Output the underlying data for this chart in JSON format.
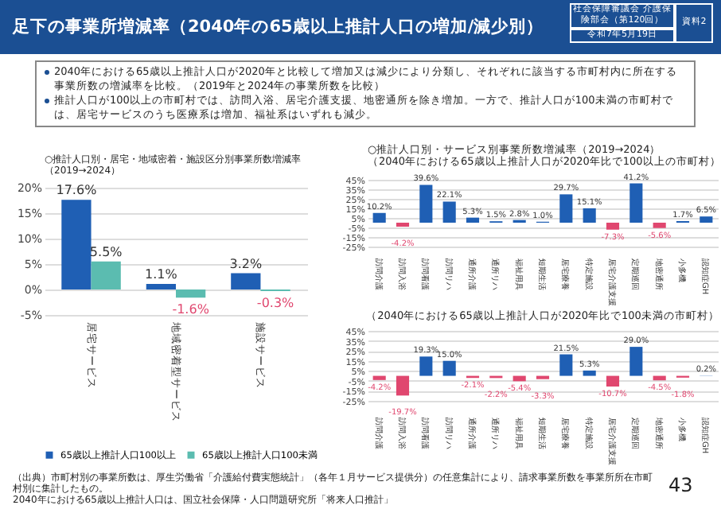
{
  "chart_data": [
    {
      "type": "other",
      "title": "足下の事業所増減率（2040年の65歳以上推計人口の増加/減少別）",
      "annotations": [
        "社会保障審議会 介護保険部会（第120回）",
        "令和7年5月19日",
        "資料2",
        "2040年における65歳以上推計人口が2020年と比較して増加又は減少により分類し、それぞれに該当する市町村内に所在する事業所数の増減率を比較。（2019年と2024年の事業所数を比較）",
        "推計人口が100以上の市町村では、訪問入浴、居宅介護支援、地密通所を除き増加。一方で、推計人口が100未満の市町村では、居宅サービスのうち医療系は増加、福祉系はいずれも減少。",
        "（出典）市町村別の事業所数は、厚生労働省「介護給付費実態統計」（各年１月サービス提供分）の任意集計により、請求事業所数を事業所所在市町村別に集計したもの。",
        "2040年における65歳以上推計人口は、国立社会保障・人口問題研究所「将来人口推計」",
        "43"
      ]
    },
    {
      "type": "bar",
      "title": "○推計人口別・居宅・地域密着・施設区分別事業所数増減率",
      "subtitle": "（2019→2024）",
      "categories": [
        "居宅サービス",
        "地域密着型サービス",
        "施設サービス"
      ],
      "series": [
        {
          "name": "65歳以上推計人口100以上",
          "color": "#1f5fb4",
          "values": [
            17.6,
            1.1,
            3.2
          ],
          "value_labels": [
            "17.6%",
            "1.1%",
            "3.2%"
          ]
        },
        {
          "name": "65歳以上推計人口100未満",
          "color": "#5bbcb0",
          "values": [
            5.5,
            -1.6,
            -0.3
          ],
          "value_labels": [
            "5.5%",
            "-1.6%",
            "-0.3%"
          ]
        }
      ],
      "ylim": [
        -5,
        20
      ],
      "yticks": [
        {
          "value": -5,
          "label": "-5%"
        },
        {
          "value": 0,
          "label": "0%"
        },
        {
          "value": 5,
          "label": "5%"
        },
        {
          "value": 10,
          "label": "10%"
        },
        {
          "value": 15,
          "label": "15%"
        },
        {
          "value": 20,
          "label": "20%"
        }
      ],
      "grid": "y",
      "legend": "bottom"
    },
    {
      "type": "bar",
      "title": "○推計人口別・サービス別事業所数増減率（2019→2024）",
      "subtitle": "（2040年における65歳以上推計人口が2020年比で100以上の市町村）",
      "categories": [
        "訪問介護",
        "訪問入浴",
        "訪問看護",
        "訪問リハ",
        "通所介護",
        "通所リハ",
        "福祉用具",
        "短期生活",
        "居宅療養",
        "特定施設",
        "居宅介護支援",
        "定期巡回",
        "地密通所",
        "小多機",
        "認知症GH"
      ],
      "values": [
        10.2,
        -4.2,
        39.6,
        22.1,
        5.3,
        1.5,
        2.8,
        1.0,
        29.7,
        15.1,
        -7.3,
        41.2,
        -5.6,
        1.7,
        6.5
      ],
      "value_labels": [
        "10.2%",
        "-4.2%",
        "39.6%",
        "22.1%",
        "5.3%",
        "1.5%",
        "2.8%",
        "1.0%",
        "29.7%",
        "15.1%",
        "-7.3%",
        "41.2%",
        "-5.6%",
        "1.7%",
        "6.5%"
      ],
      "colors": [
        "#1f5fb4",
        "#e0476f",
        "#1f5fb4",
        "#1f5fb4",
        "#1f5fb4",
        "#1f5fb4",
        "#1f5fb4",
        "#1f5fb4",
        "#1f5fb4",
        "#1f5fb4",
        "#e0476f",
        "#1f5fb4",
        "#e0476f",
        "#1f5fb4",
        "#1f5fb4"
      ],
      "ylim": [
        -25,
        45
      ],
      "yticks": [
        {
          "value": -25,
          "label": "-25%"
        },
        {
          "value": -15,
          "label": "-15%"
        },
        {
          "value": -5,
          "label": "-5%"
        },
        {
          "value": 5,
          "label": "5%"
        },
        {
          "value": 15,
          "label": "15%"
        },
        {
          "value": 25,
          "label": "25%"
        },
        {
          "value": 35,
          "label": "35%"
        },
        {
          "value": 45,
          "label": "45%"
        }
      ],
      "grid": "y"
    },
    {
      "type": "bar",
      "subtitle": "（2040年における65歳以上推計人口が2020年比で100未満の市町村）",
      "categories": [
        "訪問介護",
        "訪問入浴",
        "訪問看護",
        "訪問リハ",
        "通所介護",
        "通所リハ",
        "福祉用具",
        "短期生活",
        "居宅療養",
        "特定施設",
        "居宅介護支援",
        "定期巡回",
        "地密通所",
        "小多機",
        "認知症GH"
      ],
      "values": [
        -4.2,
        -19.7,
        19.3,
        15.0,
        -2.1,
        -2.2,
        -5.4,
        -3.3,
        21.5,
        5.3,
        -10.7,
        29.0,
        -4.5,
        -1.8,
        0.2
      ],
      "value_labels": [
        "-4.2%",
        "-19.7%",
        "19.3%",
        "15.0%",
        "-2.1%",
        "-2.2%",
        "-5.4%",
        "-3.3%",
        "21.5%",
        "5.3%",
        "-10.7%",
        "29.0%",
        "-4.5%",
        "-1.8%",
        "0.2%"
      ],
      "colors": [
        "#e0476f",
        "#e0476f",
        "#1f5fb4",
        "#1f5fb4",
        "#e0476f",
        "#e0476f",
        "#e0476f",
        "#e0476f",
        "#1f5fb4",
        "#1f5fb4",
        "#e0476f",
        "#1f5fb4",
        "#e0476f",
        "#e0476f",
        "#1f5fb4"
      ],
      "ylim": [
        -25,
        45
      ],
      "yticks": [
        {
          "value": -25,
          "label": "-25%"
        },
        {
          "value": -15,
          "label": "-15%"
        },
        {
          "value": -5,
          "label": "-5%"
        },
        {
          "value": 5,
          "label": "5%"
        },
        {
          "value": 15,
          "label": "15%"
        },
        {
          "value": 25,
          "label": "25%"
        },
        {
          "value": 35,
          "label": "35%"
        },
        {
          "value": 45,
          "label": "45%"
        }
      ],
      "grid": "y"
    }
  ]
}
